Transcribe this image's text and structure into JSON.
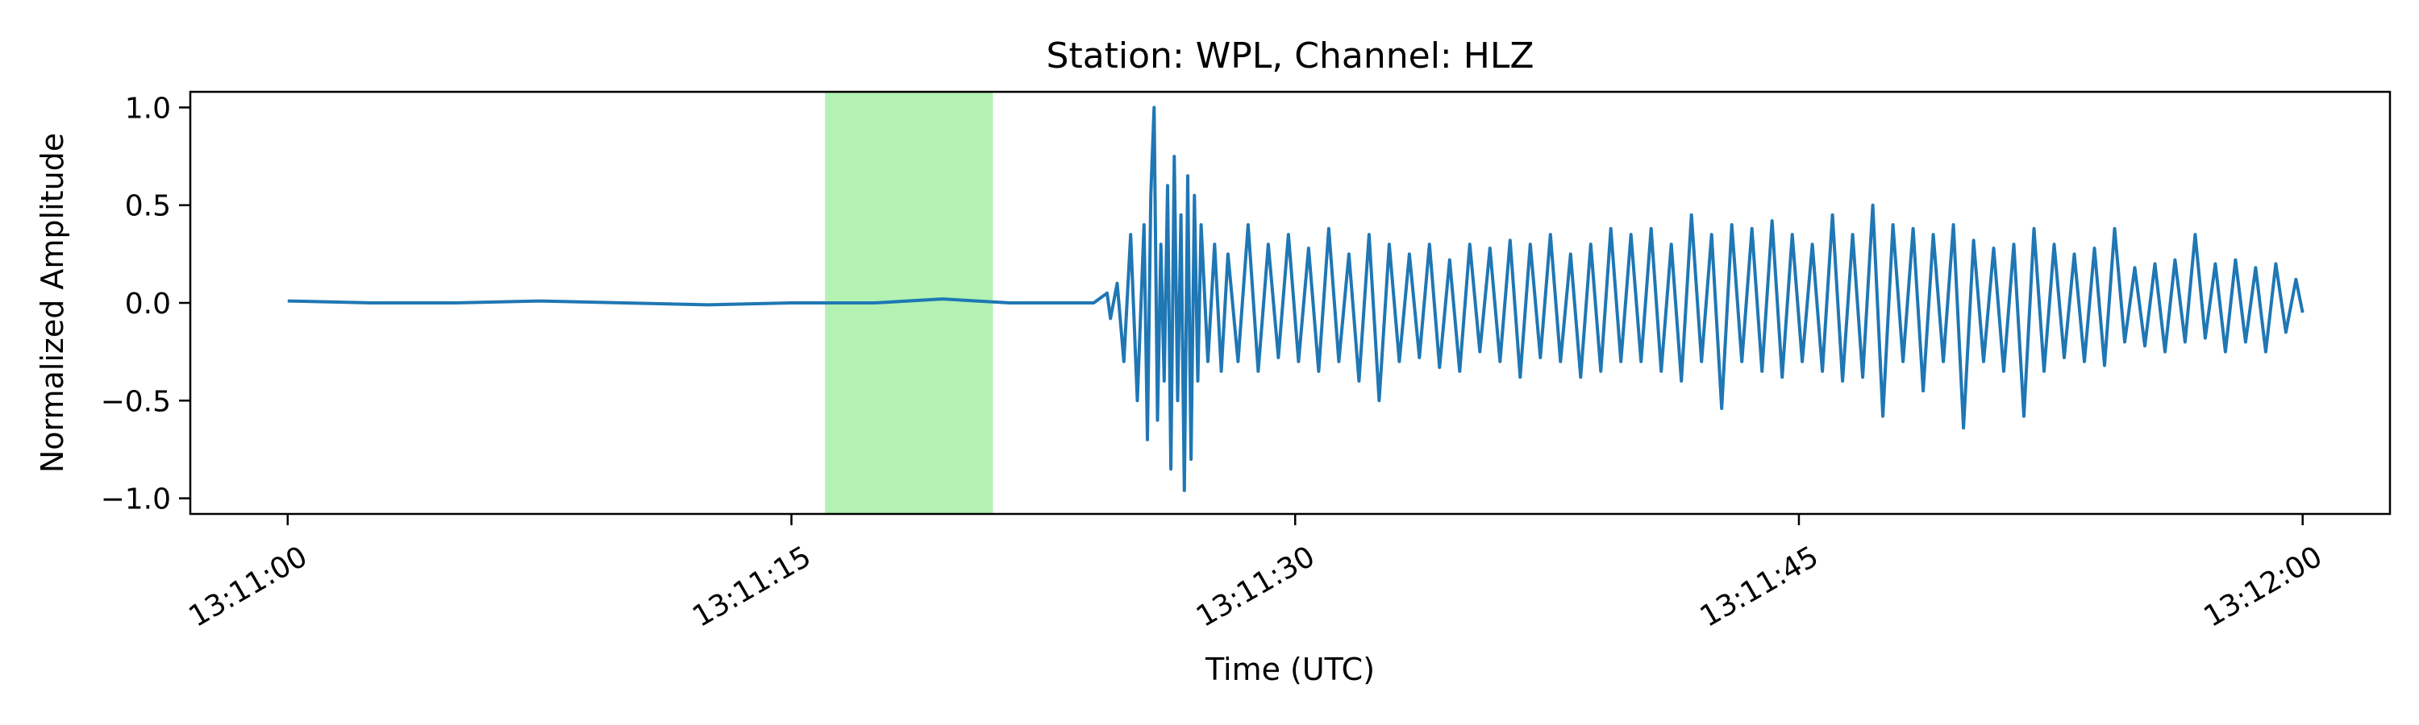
{
  "chart_data": {
    "type": "line",
    "title": "Station: WPL, Channel: HLZ",
    "xlabel": "Time (UTC)",
    "ylabel": "Normalized Amplitude",
    "x_unit": "seconds after 13:11:00 UTC",
    "xlim": [
      -2.9,
      62.6
    ],
    "ylim": [
      -1.08,
      1.08
    ],
    "x_ticks": [
      {
        "value": 0,
        "label": "13:11:00"
      },
      {
        "value": 15,
        "label": "13:11:15"
      },
      {
        "value": 30,
        "label": "13:11:30"
      },
      {
        "value": 45,
        "label": "13:11:45"
      },
      {
        "value": 60,
        "label": "13:12:00"
      }
    ],
    "y_ticks": [
      {
        "value": 1.0,
        "label": "1.0"
      },
      {
        "value": 0.5,
        "label": "0.5"
      },
      {
        "value": 0.0,
        "label": "0.0"
      },
      {
        "value": -0.5,
        "label": "−0.5"
      },
      {
        "value": -1.0,
        "label": "−1.0"
      }
    ],
    "highlight_span": {
      "x_start": 16.0,
      "x_end": 21.0,
      "color": "#b3f2b3"
    },
    "series": [
      {
        "color": "#1f77b4",
        "x": [
          0.0,
          2.5,
          5.0,
          7.5,
          10.0,
          12.5,
          15.0,
          17.5,
          19.5,
          21.5,
          24.0,
          24.4,
          24.5,
          24.7,
          24.9,
          25.1,
          25.3,
          25.5,
          25.6,
          25.7,
          25.8,
          25.9,
          26.0,
          26.1,
          26.2,
          26.3,
          26.4,
          26.5,
          26.6,
          26.7,
          26.8,
          26.9,
          27.0,
          27.1,
          27.2,
          27.4,
          27.6,
          27.8,
          28.0,
          28.3,
          28.6,
          28.9,
          29.2,
          29.5,
          29.8,
          30.1,
          30.4,
          30.7,
          31.0,
          31.3,
          31.6,
          31.9,
          32.2,
          32.5,
          32.8,
          33.1,
          33.4,
          33.7,
          34.0,
          34.3,
          34.6,
          34.9,
          35.2,
          35.5,
          35.8,
          36.1,
          36.4,
          36.7,
          37.0,
          37.3,
          37.6,
          37.9,
          38.2,
          38.5,
          38.8,
          39.1,
          39.4,
          39.7,
          40.0,
          40.3,
          40.6,
          40.9,
          41.2,
          41.5,
          41.8,
          42.1,
          42.4,
          42.7,
          43.0,
          43.3,
          43.6,
          43.9,
          44.2,
          44.5,
          44.8,
          45.1,
          45.4,
          45.7,
          46.0,
          46.3,
          46.6,
          46.9,
          47.2,
          47.5,
          47.8,
          48.1,
          48.4,
          48.7,
          49.0,
          49.3,
          49.6,
          49.9,
          50.2,
          50.5,
          50.8,
          51.1,
          51.4,
          51.7,
          52.0,
          52.3,
          52.6,
          52.9,
          53.2,
          53.5,
          53.8,
          54.1,
          54.4,
          54.7,
          55.0,
          55.3,
          55.6,
          55.9,
          56.2,
          56.5,
          56.8,
          57.1,
          57.4,
          57.7,
          58.0,
          58.3,
          58.6,
          58.9,
          59.2,
          59.5,
          59.8,
          60.0
        ],
        "y": [
          0.01,
          0.0,
          0.0,
          0.01,
          0.0,
          -0.01,
          0.0,
          0.0,
          0.02,
          0.0,
          0.0,
          0.05,
          -0.08,
          0.1,
          -0.3,
          0.35,
          -0.5,
          0.4,
          -0.7,
          0.55,
          1.0,
          -0.6,
          0.3,
          -0.4,
          0.6,
          -0.85,
          0.75,
          -0.5,
          0.45,
          -0.96,
          0.65,
          -0.8,
          0.55,
          -0.4,
          0.4,
          -0.3,
          0.3,
          -0.35,
          0.25,
          -0.3,
          0.4,
          -0.35,
          0.3,
          -0.28,
          0.35,
          -0.3,
          0.28,
          -0.35,
          0.38,
          -0.3,
          0.25,
          -0.4,
          0.35,
          -0.5,
          0.3,
          -0.3,
          0.25,
          -0.28,
          0.3,
          -0.33,
          0.22,
          -0.35,
          0.3,
          -0.25,
          0.28,
          -0.3,
          0.32,
          -0.38,
          0.3,
          -0.28,
          0.35,
          -0.3,
          0.25,
          -0.38,
          0.3,
          -0.35,
          0.38,
          -0.3,
          0.35,
          -0.3,
          0.38,
          -0.35,
          0.3,
          -0.4,
          0.45,
          -0.3,
          0.35,
          -0.54,
          0.4,
          -0.3,
          0.38,
          -0.35,
          0.42,
          -0.38,
          0.35,
          -0.3,
          0.3,
          -0.35,
          0.45,
          -0.4,
          0.35,
          -0.38,
          0.5,
          -0.58,
          0.4,
          -0.3,
          0.38,
          -0.45,
          0.35,
          -0.3,
          0.4,
          -0.64,
          0.32,
          -0.3,
          0.28,
          -0.35,
          0.3,
          -0.58,
          0.38,
          -0.35,
          0.3,
          -0.28,
          0.25,
          -0.3,
          0.28,
          -0.32,
          0.38,
          -0.2,
          0.18,
          -0.22,
          0.2,
          -0.25,
          0.22,
          -0.2,
          0.35,
          -0.18,
          0.2,
          -0.25,
          0.22,
          -0.2,
          0.18,
          -0.25,
          0.2,
          -0.15,
          0.12,
          -0.05
        ]
      }
    ]
  }
}
